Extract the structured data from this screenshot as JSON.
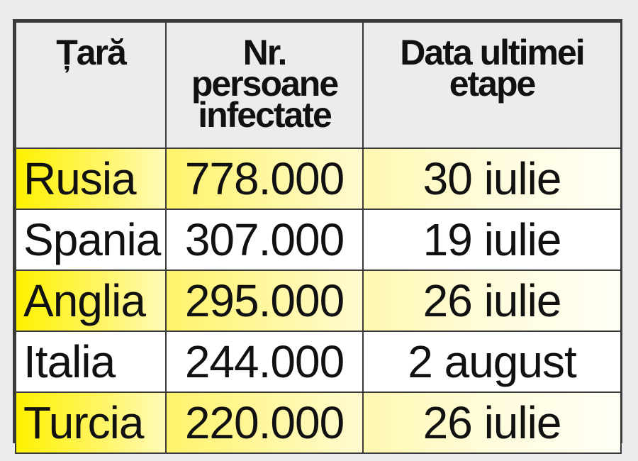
{
  "table": {
    "headers": [
      "Țară",
      "Nr. persoane infectate",
      "Data ultimei etape"
    ],
    "rows": [
      {
        "country": "Rusia",
        "infected": "778.000",
        "date": "30 iulie",
        "highlight": true
      },
      {
        "country": "Spania",
        "infected": "307.000",
        "date": "19 iulie",
        "highlight": false
      },
      {
        "country": "Anglia",
        "infected": "295.000",
        "date": "26 iulie",
        "highlight": true
      },
      {
        "country": "Italia",
        "infected": "244.000",
        "date": "2 august",
        "highlight": false
      },
      {
        "country": "Turcia",
        "infected": "220.000",
        "date": "26 iulie",
        "highlight": true
      }
    ],
    "highlight_color": "#fff200",
    "header_bg": "#ececec",
    "border_color": "#3a3a3a"
  }
}
